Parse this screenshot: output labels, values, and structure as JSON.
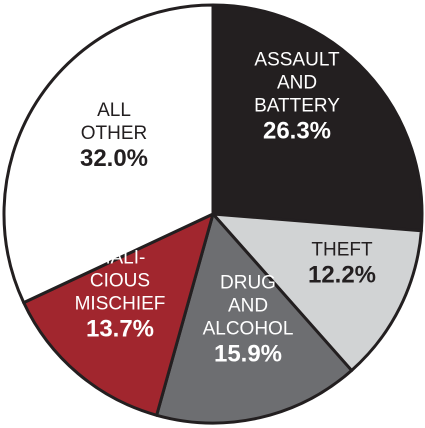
{
  "chart_data": {
    "type": "pie",
    "title": "",
    "start_angle_deg": 0,
    "direction": "clockwise",
    "slices": [
      {
        "label_lines": [
          "ASSAULT",
          "AND",
          "BATTERY"
        ],
        "value": 26.3,
        "value_label": "26.3%",
        "color": "#231f20",
        "text_color": "#ffffff"
      },
      {
        "label_lines": [
          "THEFT"
        ],
        "value": 12.2,
        "value_label": "12.2%",
        "color": "#d1d3d4",
        "text_color": "#231f20"
      },
      {
        "label_lines": [
          "DRUG",
          "AND",
          "ALCOHOL"
        ],
        "value": 15.9,
        "value_label": "15.9%",
        "color": "#6d6e71",
        "text_color": "#ffffff"
      },
      {
        "label_lines": [
          "MALI-",
          "CIOUS",
          "MISCHIEF"
        ],
        "value": 13.7,
        "value_label": "13.7%",
        "color": "#a1262e",
        "text_color": "#ffffff"
      },
      {
        "label_lines": [
          "ALL",
          "OTHER"
        ],
        "value": 32.0,
        "value_label": "32.0%",
        "color": "#ffffff",
        "text_color": "#231f20"
      }
    ]
  }
}
